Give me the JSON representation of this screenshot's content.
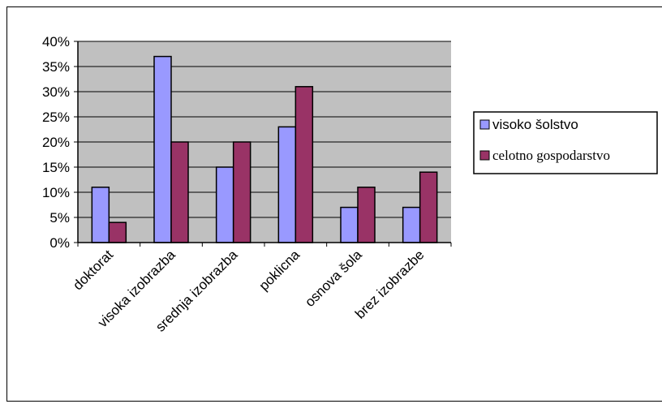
{
  "chart_data": {
    "type": "bar",
    "categories": [
      "doktorat",
      "visoka izobrazba",
      "srednja izobrazba",
      "poklicna",
      "osnova šola",
      "brez izobrazbe"
    ],
    "series": [
      {
        "name": "visoko šolstvo",
        "values": [
          11,
          37,
          15,
          23,
          7,
          7
        ],
        "color": "#9999ff"
      },
      {
        "name": "celotno gospodarstvo",
        "values": [
          4,
          20,
          20,
          31,
          11,
          14
        ],
        "color": "#993366"
      }
    ],
    "y_ticks": [
      "0%",
      "5%",
      "10%",
      "15%",
      "20%",
      "25%",
      "30%",
      "35%",
      "40%"
    ],
    "ylim": [
      0,
      40
    ],
    "y_step": 5,
    "grid": true,
    "plot_background": "#c0c0c0",
    "legend_position": "right"
  }
}
